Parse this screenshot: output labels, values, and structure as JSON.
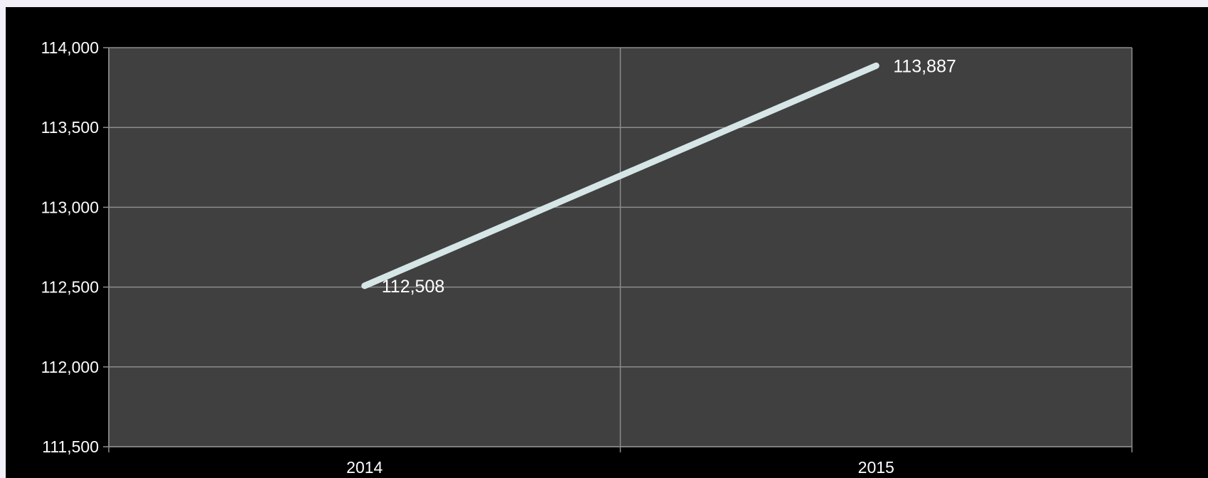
{
  "chart_data": {
    "type": "line",
    "categories": [
      "2014",
      "2015"
    ],
    "series": [
      {
        "values": [
          112508,
          113887
        ],
        "labels": [
          "112,508",
          "113,887"
        ]
      }
    ],
    "ylim": [
      111500,
      114000
    ],
    "y_ticks": [
      111500,
      112000,
      112500,
      113000,
      113500,
      114000
    ],
    "y_tick_labels": [
      "111,500",
      "112,000",
      "112,500",
      "113,000",
      "113,500",
      "114,000"
    ],
    "grid": true,
    "legend": "none",
    "colors": {
      "plot_background": "#404040",
      "frame_background": "#000000",
      "grid": "#8c8c8c",
      "line": "#d6e6e6",
      "text": "#ffffff"
    }
  }
}
